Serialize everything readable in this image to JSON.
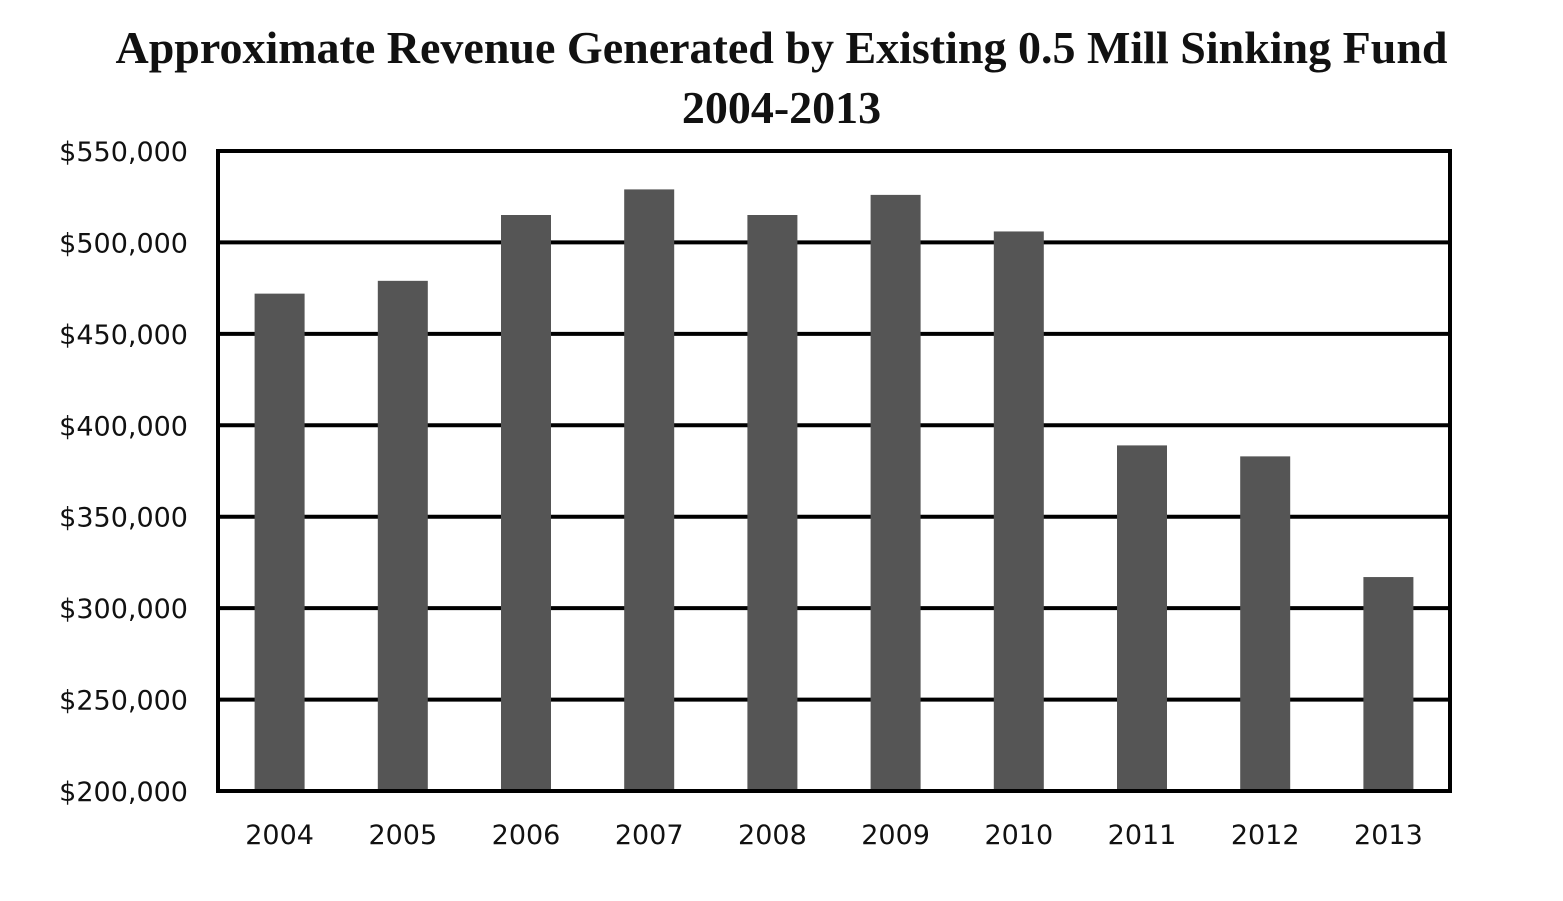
{
  "chart_data": {
    "type": "bar",
    "title": "Approximate Revenue Generated by Existing 0.5 Mill Sinking Fund",
    "subtitle": "2004-2013",
    "xlabel": "",
    "ylabel": "",
    "categories": [
      "2004",
      "2005",
      "2006",
      "2007",
      "2008",
      "2009",
      "2010",
      "2011",
      "2012",
      "2013"
    ],
    "values": [
      472000,
      479000,
      515000,
      529000,
      515000,
      526000,
      506000,
      389000,
      383000,
      317000
    ],
    "ylim": [
      200000,
      550000
    ],
    "yticks": [
      200000,
      250000,
      300000,
      350000,
      400000,
      450000,
      500000,
      550000
    ],
    "ytick_labels": [
      "$200,000",
      "$250,000",
      "$300,000",
      "$350,000",
      "$400,000",
      "$450,000",
      "$500,000",
      "$550,000"
    ],
    "grid": true,
    "legend": "none",
    "bar_color": "#555555",
    "grid_color": "#000000"
  }
}
